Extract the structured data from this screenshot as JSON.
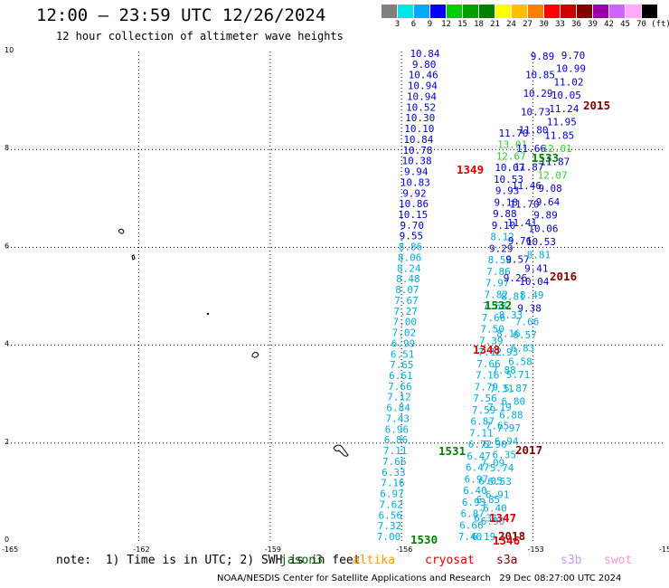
{
  "title": "12:00 — 23:59 UTC 12/26/2024",
  "subtitle": "12 hour collection of altimeter wave heights",
  "color_scale": {
    "unit": "(ft)",
    "colors": [
      "#808080",
      "#00e6e6",
      "#00aaff",
      "#0000ff",
      "#00cc00",
      "#00a000",
      "#008000",
      "#ffff00",
      "#ffc000",
      "#ff8000",
      "#ff0000",
      "#cc0000",
      "#800000",
      "#9900aa",
      "#cc66ff",
      "#ffaaff",
      "#000000"
    ],
    "labels": [
      "3",
      "6",
      "9",
      "12",
      "15",
      "18",
      "21",
      "24",
      "27",
      "30",
      "33",
      "36",
      "39",
      "42",
      "45",
      "70"
    ]
  },
  "axes": {
    "x_labels": [
      "-165",
      "-162",
      "-159",
      "-156",
      "-153",
      "-150"
    ],
    "y_labels": [
      "0",
      "2",
      "4",
      "6",
      "8",
      "10"
    ]
  },
  "note": "note:  1) Time is in UTC; 2) SWH is in feet",
  "satellites": [
    {
      "name": "jason3",
      "color": "#006400"
    },
    {
      "name": "altika",
      "color": "#ff9900"
    },
    {
      "name": "cryosat",
      "color": "#dd0000"
    },
    {
      "name": "s3a",
      "color": "#800000"
    },
    {
      "name": "s3b",
      "color": "#cc99ff"
    },
    {
      "name": "swot",
      "color": "#ff99cc"
    }
  ],
  "credit": "NOAA/NESDIS Center for Satellite Applications and Research   29 Dec 08:27:00 UTC 2024",
  "pass_times": [
    {
      "text": "2015",
      "color": "#800000"
    },
    {
      "text": "1533",
      "color": "#008000"
    },
    {
      "text": "1349",
      "color": "#dd0000"
    },
    {
      "text": "2016",
      "color": "#800000"
    },
    {
      "text": "1532",
      "color": "#008000"
    },
    {
      "text": "1348",
      "color": "#dd0000"
    },
    {
      "text": "2017",
      "color": "#800000"
    },
    {
      "text": "1531",
      "color": "#008000"
    },
    {
      "text": "1347",
      "color": "#dd0000"
    },
    {
      "text": "2018",
      "color": "#800000"
    },
    {
      "text": "1530",
      "color": "#008000"
    },
    {
      "text": "1346",
      "color": "#dd0000"
    }
  ],
  "tracks": [
    [
      "10.84",
      "9.80",
      "10.46",
      "10.94",
      "10.94",
      "10.52",
      "10.30",
      "10.10",
      "10.84",
      "10.78",
      "10.38",
      "9.94",
      "10.83",
      "9.92",
      "10.86",
      "10.15",
      "9.70",
      "9.55",
      "8.86",
      "8.06",
      "8.24",
      "8.48",
      "8.07",
      "7.67",
      "7.27",
      "7.00",
      "7.02",
      "6.99",
      "6.51",
      "7.65",
      "6.61",
      "7.66",
      "7.12",
      "6.84",
      "7.43",
      "6.96",
      "6.86",
      "7.11",
      "7.66",
      "6.33",
      "7.16",
      "6.97",
      "7.62",
      "6.56",
      "7.32",
      "7.00"
    ],
    [
      "11.70",
      "13.01",
      "12.67",
      "10.07",
      "10.53",
      "9.93",
      "9.18",
      "9.88",
      "9.10",
      "8.12",
      "9.29",
      "8.58",
      "7.86",
      "7.97",
      "7.82",
      "7.68",
      "7.66",
      "7.50",
      "7.39",
      "7.12",
      "7.66",
      "7.16",
      "7.79",
      "7.56",
      "7.59",
      "6.87",
      "7.11",
      "6.72",
      "6.47",
      "6.47",
      "6.97",
      "6.40",
      "6.93",
      "6.87",
      "6.66",
      "7.40"
    ],
    [
      "9.89",
      "10.85",
      "10.29",
      "10.73",
      "11.80",
      "11.66",
      "11.87",
      "11.46",
      "11.70",
      "11.41",
      "9.76",
      "9.57",
      "9.26",
      "8.81",
      "8.33",
      "8.16",
      "7.93",
      "7.88",
      "7.31",
      "7.19",
      "7.65",
      "6.90",
      "7.09",
      "6.05",
      "6.85",
      "6.31",
      "6.19"
    ],
    [
      "9.70",
      "10.99",
      "11.02",
      "10.05",
      "11.24",
      "11.95",
      "11.85",
      "12.01",
      "11.87",
      "12.07",
      "9.08",
      "9.64",
      "9.89",
      "10.06",
      "10.53",
      "8.81",
      "9.41",
      "10.04",
      "8.49",
      "9.38",
      "7.66",
      "6.57",
      "6.83",
      "6.58",
      "5.71",
      "5.87",
      "6.80",
      "6.88",
      "7.97",
      "6.94",
      "6.35",
      "5.74",
      "6.53",
      "6.91",
      "6.40",
      "6.90"
    ]
  ]
}
